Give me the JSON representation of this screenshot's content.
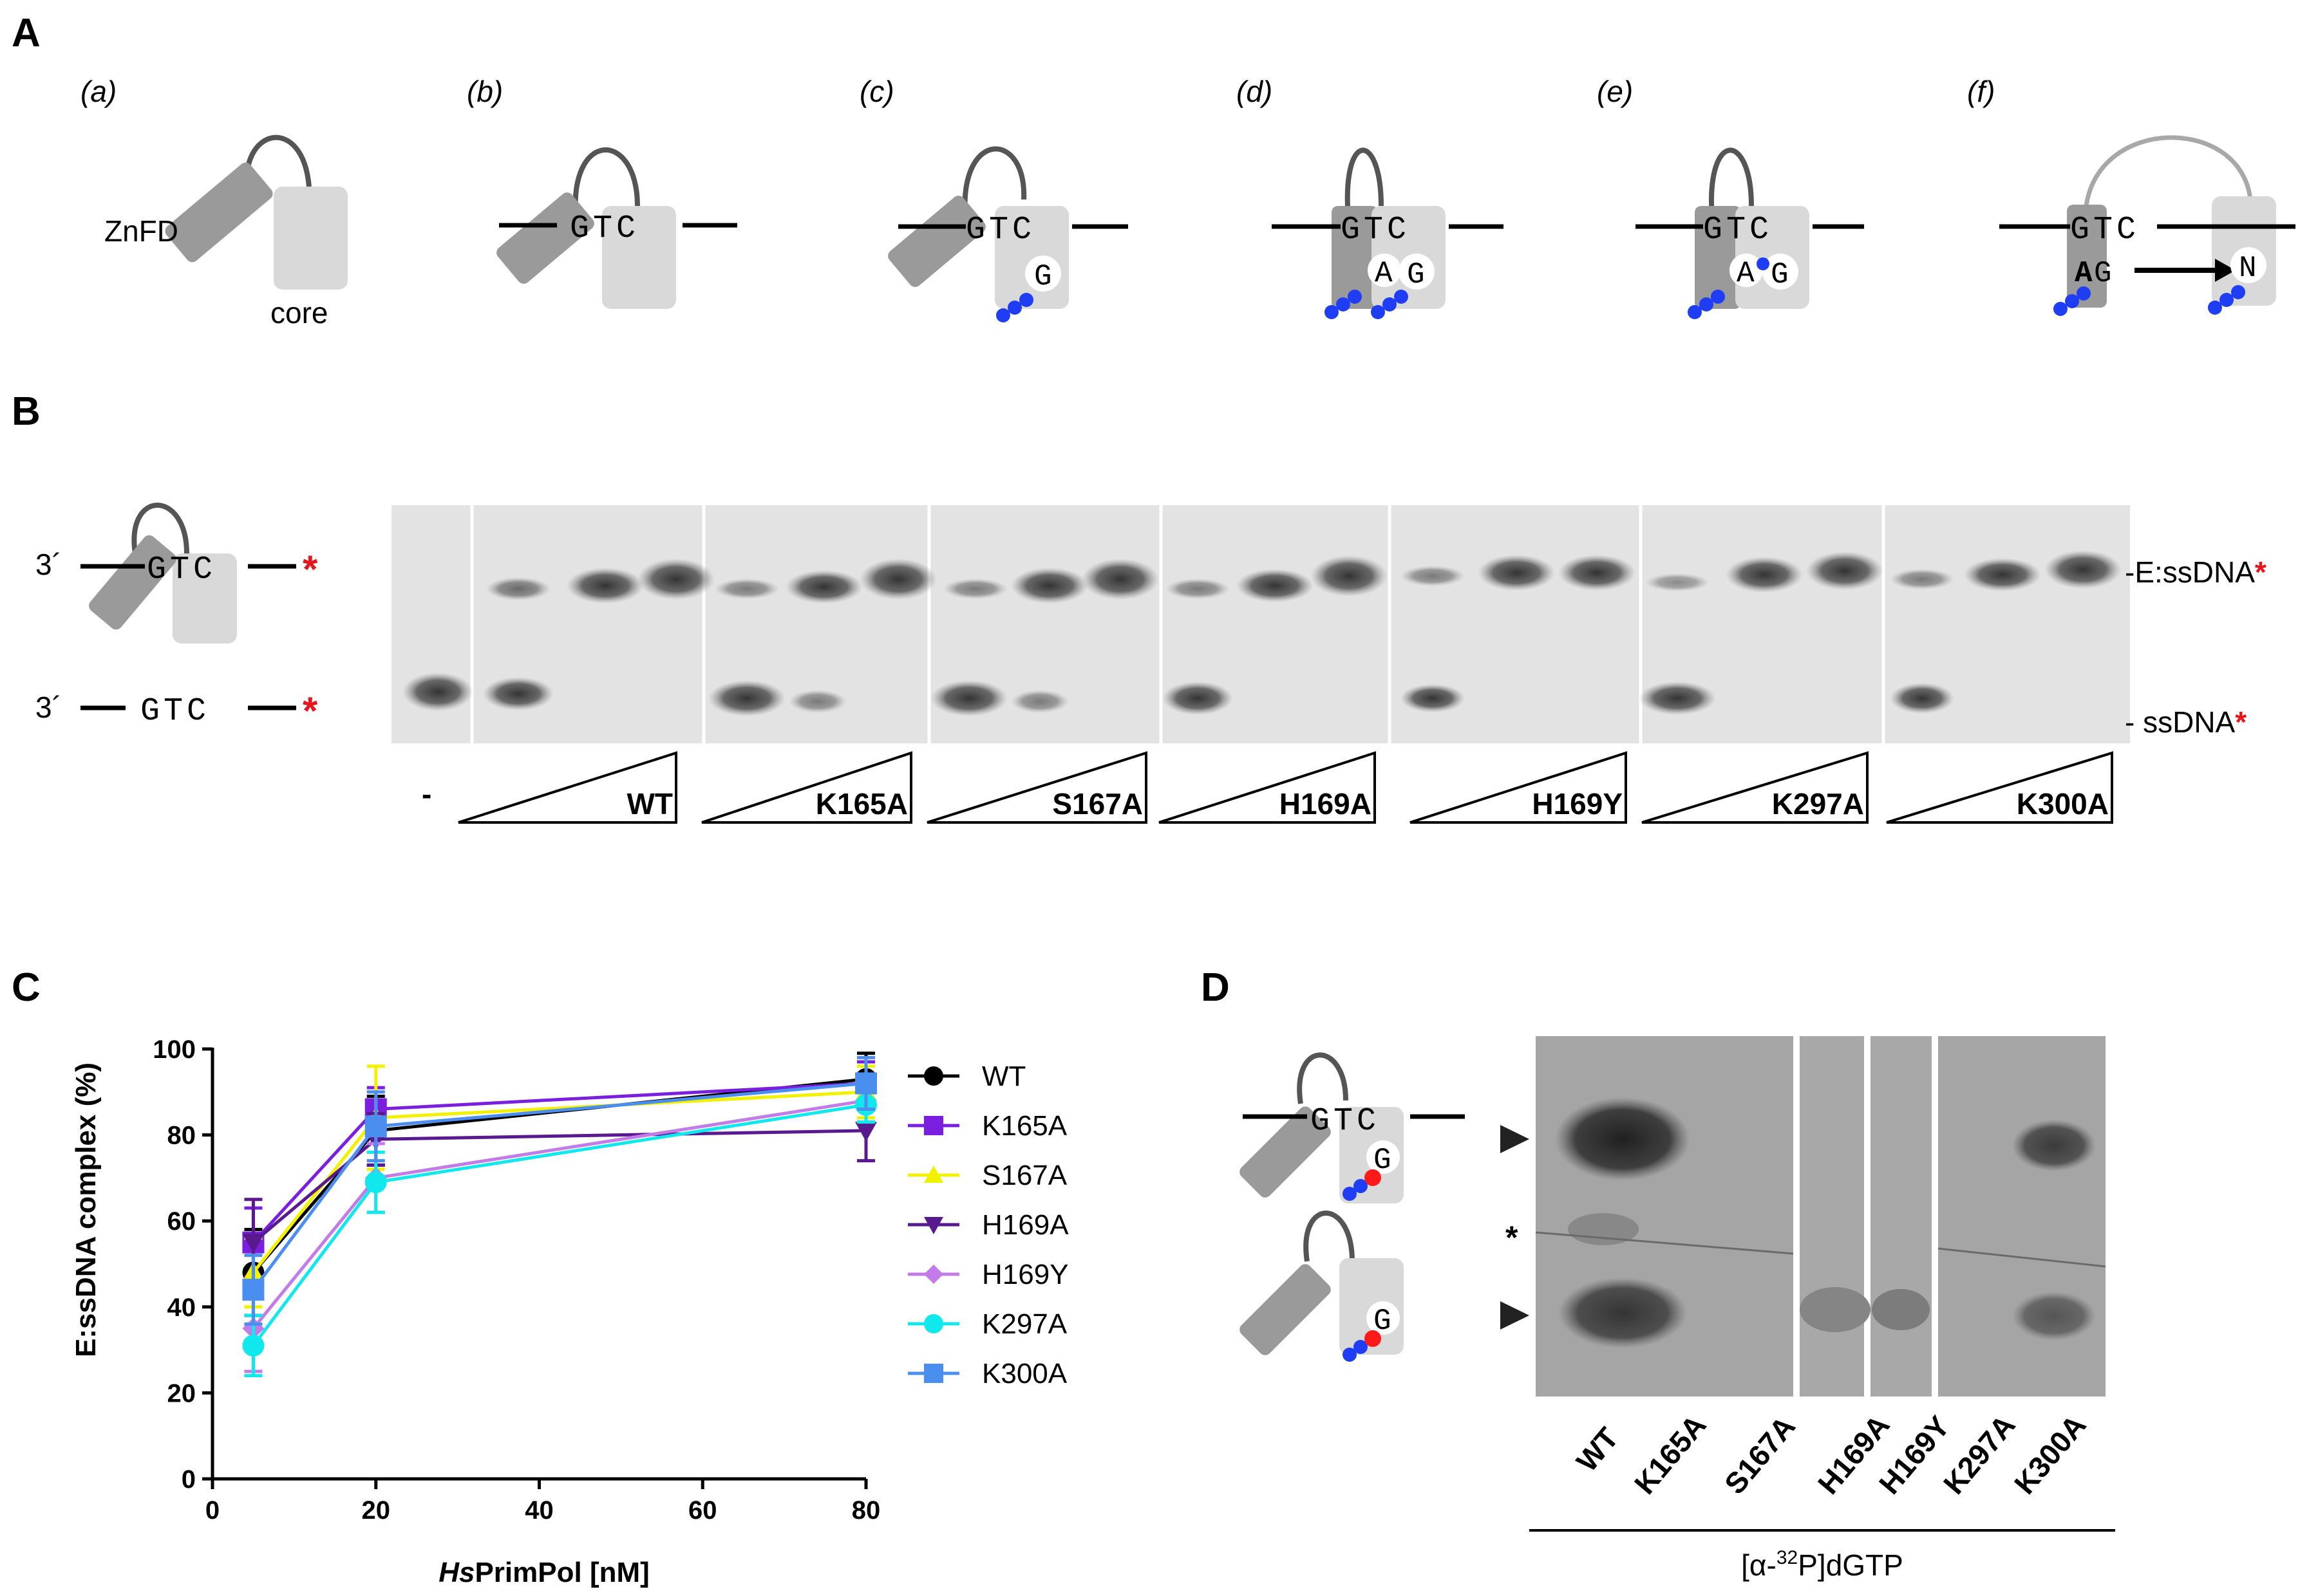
{
  "panels": {
    "A": "A",
    "B": "B",
    "C": "C",
    "D": "D"
  },
  "panel_a": {
    "subpanels": [
      "(a)",
      "(b)",
      "(c)",
      "(d)",
      "(e)",
      "(f)"
    ],
    "znfd_label": "ZnFD",
    "core_label": "core",
    "template_seq": "GTC",
    "nt_G": "G",
    "nt_A": "A",
    "nt_N": "N"
  },
  "panel_b": {
    "prime_3": "3´",
    "probe_seq": "GTC",
    "band_complex": "-E:ssDNA",
    "band_free": "- ssDNA",
    "asterisk": "*",
    "no_enzyme": "-",
    "lanes": [
      "WT",
      "K165A",
      "S167A",
      "H169A",
      "H169Y",
      "K297A",
      "K300A"
    ]
  },
  "panel_c": {
    "ylabel": "E:ssDNA complex (%)",
    "xlabel_italic": "Hs",
    "xlabel_rest": "PrimPol [nM]"
  },
  "panel_d": {
    "template_seq": "GTC",
    "nt_G": "G",
    "asterisk": "*",
    "lanes": [
      "WT",
      "K165A",
      "S167A",
      "H169A",
      "H169Y",
      "K297A",
      "K300A"
    ],
    "caption_open": "[α-",
    "caption_sup": "32",
    "caption_close": "P]dGTP"
  },
  "colors": {
    "dot_blue": "#1f3df5",
    "dot_red": "#ff1a1a",
    "core_grey": "#d9d9d9",
    "znfd_grey": "#9a9a9a"
  },
  "chart_data": {
    "type": "line",
    "title": "",
    "xlabel": "HsPrimPol [nM]",
    "ylabel": "E:ssDNA complex (%)",
    "xlim": [
      0,
      80
    ],
    "ylim": [
      0,
      100
    ],
    "xticks": [
      0,
      20,
      40,
      60,
      80
    ],
    "yticks": [
      0,
      20,
      40,
      60,
      80,
      100
    ],
    "x": [
      5,
      20,
      80
    ],
    "series": [
      {
        "name": "WT",
        "color": "#000000",
        "marker": "circle",
        "values": [
          48,
          81,
          93
        ],
        "err": [
          10,
          8,
          6
        ]
      },
      {
        "name": "K165A",
        "color": "#7a1fe0",
        "marker": "square",
        "values": [
          55,
          86,
          92
        ],
        "err": [
          8,
          5,
          5
        ]
      },
      {
        "name": "S167A",
        "color": "#f2f200",
        "marker": "triangle-up",
        "values": [
          48,
          84,
          90
        ],
        "err": [
          8,
          12,
          6
        ]
      },
      {
        "name": "H169A",
        "color": "#5a1a8f",
        "marker": "triangle-down",
        "values": [
          55,
          79,
          81
        ],
        "err": [
          10,
          6,
          7
        ]
      },
      {
        "name": "H169Y",
        "color": "#c27be8",
        "marker": "diamond",
        "values": [
          35,
          70,
          88
        ],
        "err": [
          10,
          8,
          5
        ]
      },
      {
        "name": "K297A",
        "color": "#11e8ee",
        "marker": "circle",
        "values": [
          31,
          69,
          87
        ],
        "err": [
          7,
          7,
          4
        ]
      },
      {
        "name": "K300A",
        "color": "#4a8ef0",
        "marker": "square",
        "values": [
          44,
          82,
          92
        ],
        "err": [
          8,
          8,
          6
        ]
      }
    ]
  }
}
